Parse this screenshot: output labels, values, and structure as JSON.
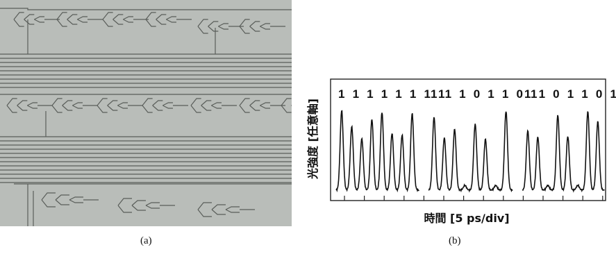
{
  "figure": {
    "caption_a": "(a)",
    "caption_b": "(b)"
  },
  "chart_data": {
    "type": "line",
    "ylabel": "光強度 [任意軸]",
    "xlabel": "時間 [5 ps/div]",
    "grid": false,
    "series": [
      {
        "bits": "11111111",
        "values": [
          1,
          1,
          1,
          1,
          1,
          1,
          1,
          1
        ]
      },
      {
        "bits": "11101101",
        "values": [
          1,
          1,
          1,
          0,
          1,
          1,
          0,
          1
        ]
      },
      {
        "bits": "11011011",
        "values": [
          1,
          1,
          0,
          1,
          1,
          0,
          1,
          1
        ]
      }
    ]
  }
}
